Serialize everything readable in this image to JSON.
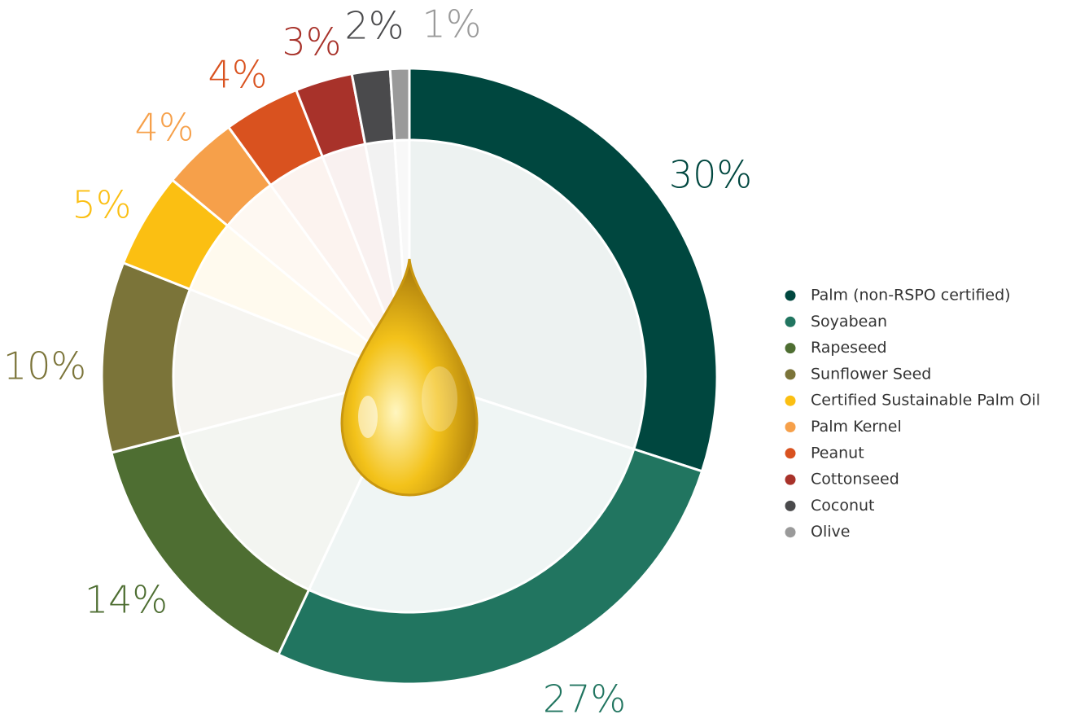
{
  "chart_data": {
    "type": "pie",
    "donut": true,
    "legend": "right",
    "categories": [
      "Palm (non-RSPO certified)",
      "Soyabean",
      "Rapeseed",
      "Sunflower Seed",
      "Certified Sustainable Palm Oil",
      "Palm Kernel",
      "Peanut",
      "Cottonseed",
      "Coconut",
      "Olive"
    ],
    "values": [
      30,
      27,
      14,
      10,
      5,
      4,
      4,
      3,
      2,
      1
    ],
    "value_labels": [
      "30%",
      "27%",
      "14%",
      "10%",
      "5%",
      "4%",
      "4%",
      "3%",
      "2%",
      "1%"
    ],
    "colors": [
      "#00473f",
      "#217560",
      "#4e6e32",
      "#7b7439",
      "#fbbf12",
      "#f6a04a",
      "#d9521f",
      "#a8322a",
      "#4a4a4c",
      "#9a9a9a"
    ]
  }
}
